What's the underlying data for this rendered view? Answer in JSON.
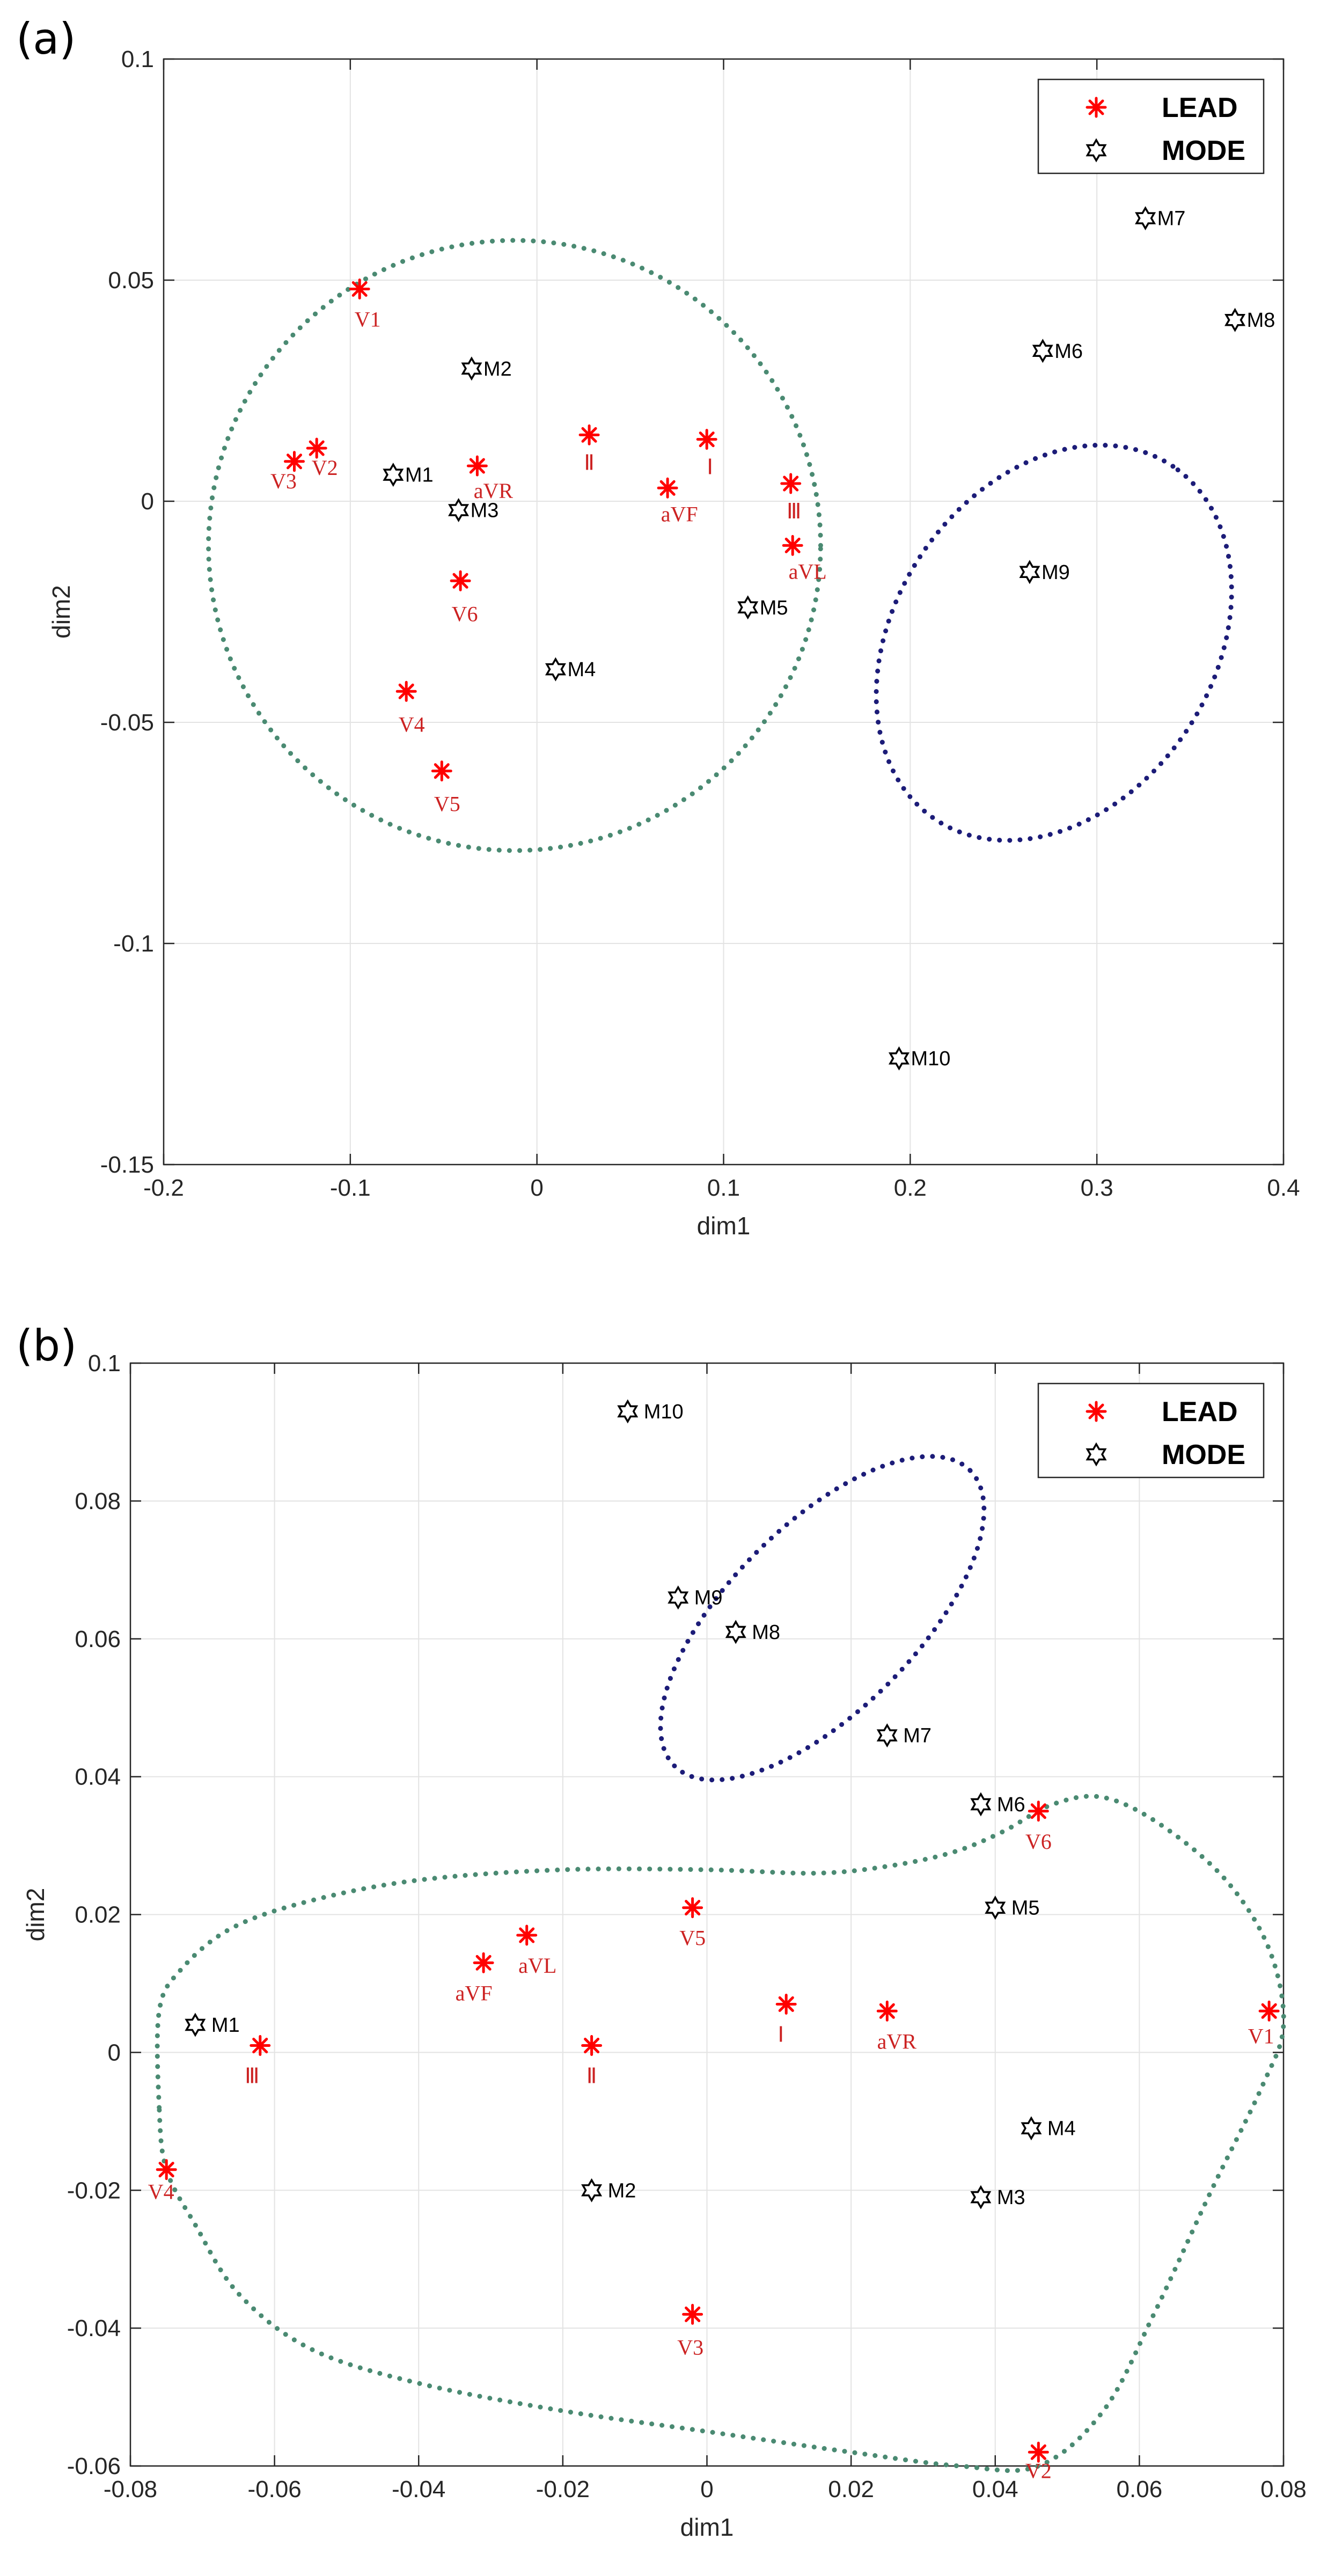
{
  "chart_data": [
    {
      "type": "scatter",
      "panel_label": "(a)",
      "xlabel": "dim1",
      "ylabel": "dim2",
      "xlim": [
        -0.2,
        0.4
      ],
      "ylim": [
        -0.15,
        0.1
      ],
      "xticks": [
        -0.2,
        -0.1,
        0,
        0.1,
        0.2,
        0.3,
        0.4
      ],
      "xtick_labels": [
        "-0.2",
        "-0.1",
        "0",
        "0.1",
        "0.2",
        "0.3",
        "0.4"
      ],
      "yticks": [
        -0.15,
        -0.1,
        -0.05,
        0,
        0.05,
        0.1
      ],
      "ytick_labels": [
        "-0.15",
        "-0.1",
        "-0.05",
        "0",
        "0.05",
        "0.1"
      ],
      "grid": true,
      "legend_position": "top-right",
      "series": [
        {
          "name": "LEAD",
          "marker": "asterisk",
          "color": "#ff0000",
          "label_color": "#cc2222",
          "points": [
            {
              "label": "V1",
              "x": -0.095,
              "y": 0.048
            },
            {
              "label": "V2",
              "x": -0.118,
              "y": 0.012
            },
            {
              "label": "V3",
              "x": -0.13,
              "y": 0.009
            },
            {
              "label": "aVR",
              "x": -0.032,
              "y": 0.008
            },
            {
              "label": "Ⅱ",
              "x": 0.028,
              "y": 0.015
            },
            {
              "label": "Ⅰ",
              "x": 0.091,
              "y": 0.014
            },
            {
              "label": "aVF",
              "x": 0.07,
              "y": 0.003
            },
            {
              "label": "Ⅲ",
              "x": 0.136,
              "y": 0.004
            },
            {
              "label": "aVL",
              "x": 0.137,
              "y": -0.01
            },
            {
              "label": "V6",
              "x": -0.041,
              "y": -0.018
            },
            {
              "label": "V4",
              "x": -0.07,
              "y": -0.043
            },
            {
              "label": "V5",
              "x": -0.051,
              "y": -0.061
            }
          ]
        },
        {
          "name": "MODE",
          "marker": "hexagram",
          "color": "#000000",
          "label_color": "#000000",
          "points": [
            {
              "label": "M1",
              "x": -0.077,
              "y": 0.006
            },
            {
              "label": "M2",
              "x": -0.035,
              "y": 0.03
            },
            {
              "label": "M3",
              "x": -0.042,
              "y": -0.002
            },
            {
              "label": "M4",
              "x": 0.01,
              "y": -0.038
            },
            {
              "label": "M5",
              "x": 0.113,
              "y": -0.024
            },
            {
              "label": "M6",
              "x": 0.271,
              "y": 0.034
            },
            {
              "label": "M7",
              "x": 0.326,
              "y": 0.064
            },
            {
              "label": "M8",
              "x": 0.374,
              "y": 0.041
            },
            {
              "label": "M9",
              "x": 0.264,
              "y": -0.016
            },
            {
              "label": "M10",
              "x": 0.194,
              "y": -0.126
            }
          ]
        }
      ],
      "clusters": [
        {
          "color": "#4a8a72",
          "center": [
            -0.012,
            -0.01
          ],
          "radius_x": 0.164,
          "radius_y": 0.069,
          "angle_deg": 0
        },
        {
          "color": "#1c1c78",
          "center": [
            0.277,
            -0.032
          ],
          "radius_x": 0.114,
          "radius_y": 0.036,
          "angle_deg": 56
        }
      ]
    },
    {
      "type": "scatter",
      "panel_label": "(b)",
      "xlabel": "dim1",
      "ylabel": "dim2",
      "xlim": [
        -0.08,
        0.08
      ],
      "ylim": [
        -0.06,
        0.1
      ],
      "xticks": [
        -0.08,
        -0.06,
        -0.04,
        -0.02,
        0,
        0.02,
        0.04,
        0.06,
        0.08
      ],
      "xtick_labels": [
        "-0.08",
        "-0.06",
        "-0.04",
        "-0.02",
        "0",
        "0.02",
        "0.04",
        "0.06",
        "0.08"
      ],
      "yticks": [
        -0.06,
        -0.04,
        -0.02,
        0,
        0.02,
        0.04,
        0.06,
        0.08,
        0.1
      ],
      "ytick_labels": [
        "-0.06",
        "-0.04",
        "-0.02",
        "0",
        "0.02",
        "0.04",
        "0.06",
        "0.08",
        "0.1"
      ],
      "grid": true,
      "legend_position": "top-right",
      "series": [
        {
          "name": "LEAD",
          "marker": "asterisk",
          "color": "#ff0000",
          "label_color": "#cc2222",
          "points": [
            {
              "label": "V6",
              "x": 0.046,
              "y": 0.035
            },
            {
              "label": "V5",
              "x": -0.002,
              "y": 0.021
            },
            {
              "label": "aVL",
              "x": -0.025,
              "y": 0.017
            },
            {
              "label": "aVF",
              "x": -0.031,
              "y": 0.013
            },
            {
              "label": "Ⅰ",
              "x": 0.011,
              "y": 0.007
            },
            {
              "label": "aVR",
              "x": 0.025,
              "y": 0.006
            },
            {
              "label": "V1",
              "x": 0.078,
              "y": 0.006
            },
            {
              "label": "Ⅲ",
              "x": -0.062,
              "y": 0.001
            },
            {
              "label": "Ⅱ",
              "x": -0.016,
              "y": 0.001
            },
            {
              "label": "V4",
              "x": -0.075,
              "y": -0.017
            },
            {
              "label": "V3",
              "x": -0.002,
              "y": -0.038
            },
            {
              "label": "V2",
              "x": 0.046,
              "y": -0.058
            }
          ]
        },
        {
          "name": "MODE",
          "marker": "hexagram",
          "color": "#000000",
          "label_color": "#000000",
          "points": [
            {
              "label": "M10",
              "x": -0.011,
              "y": 0.093
            },
            {
              "label": "M9",
              "x": -0.004,
              "y": 0.066
            },
            {
              "label": "M8",
              "x": 0.004,
              "y": 0.061
            },
            {
              "label": "M7",
              "x": 0.025,
              "y": 0.046
            },
            {
              "label": "M6",
              "x": 0.038,
              "y": 0.036
            },
            {
              "label": "M5",
              "x": 0.04,
              "y": 0.021
            },
            {
              "label": "M1",
              "x": -0.071,
              "y": 0.004
            },
            {
              "label": "M4",
              "x": 0.045,
              "y": -0.011
            },
            {
              "label": "M3",
              "x": 0.038,
              "y": -0.021
            },
            {
              "label": "M2",
              "x": -0.016,
              "y": -0.02
            }
          ]
        }
      ],
      "clusters": [
        {
          "color": "#4a8a72",
          "path": [
            [
              -0.076,
              -0.008
            ],
            [
              -0.076,
              0.006
            ],
            [
              -0.073,
              0.012
            ],
            [
              -0.066,
              0.018
            ],
            [
              -0.055,
              0.022
            ],
            [
              -0.04,
              0.025
            ],
            [
              -0.02,
              0.0265
            ],
            [
              0.0,
              0.0265
            ],
            [
              0.015,
              0.026
            ],
            [
              0.025,
              0.027
            ],
            [
              0.034,
              0.029
            ],
            [
              0.041,
              0.032
            ],
            [
              0.048,
              0.036
            ],
            [
              0.055,
              0.037
            ],
            [
              0.063,
              0.033
            ],
            [
              0.072,
              0.025
            ],
            [
              0.078,
              0.015
            ],
            [
              0.08,
              0.004
            ],
            [
              0.077,
              -0.005
            ],
            [
              0.07,
              -0.02
            ],
            [
              0.062,
              -0.038
            ],
            [
              0.055,
              -0.052
            ],
            [
              0.046,
              -0.06
            ],
            [
              0.035,
              -0.06
            ],
            [
              0.02,
              -0.058
            ],
            [
              0.0,
              -0.055
            ],
            [
              -0.02,
              -0.052
            ],
            [
              -0.04,
              -0.048
            ],
            [
              -0.055,
              -0.043
            ],
            [
              -0.065,
              -0.035
            ],
            [
              -0.071,
              -0.025
            ],
            [
              -0.075,
              -0.017
            ]
          ],
          "closed": true
        },
        {
          "color": "#1c1c78",
          "center": [
            0.016,
            0.063
          ],
          "radius_x": 0.029,
          "radius_y": 0.0135,
          "angle_deg": 45
        }
      ]
    }
  ]
}
